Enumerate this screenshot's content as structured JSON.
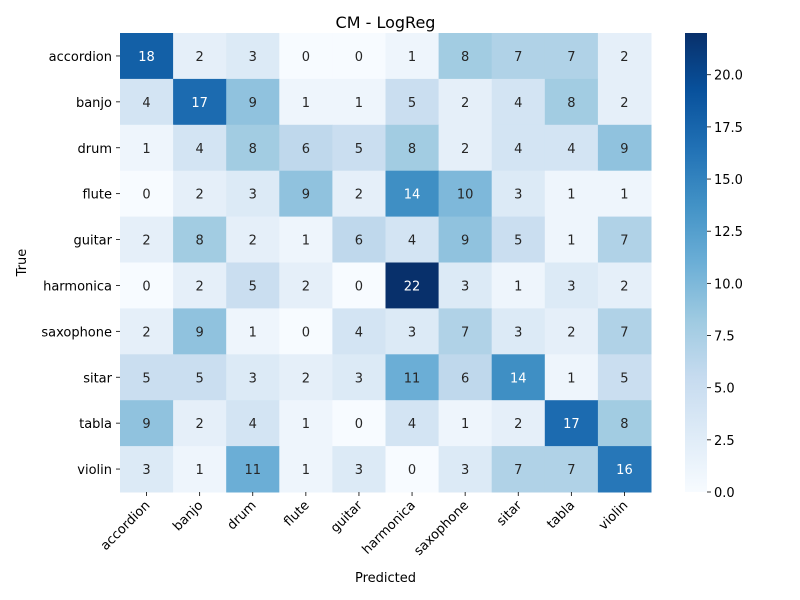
{
  "chart_data": {
    "type": "heatmap",
    "title": "CM - LogReg",
    "xlabel": "Predicted",
    "ylabel": "True",
    "x_categories": [
      "accordion",
      "banjo",
      "drum",
      "flute",
      "guitar",
      "harmonica",
      "saxophone",
      "sitar",
      "tabla",
      "violin"
    ],
    "y_categories": [
      "accordion",
      "banjo",
      "drum",
      "flute",
      "guitar",
      "harmonica",
      "saxophone",
      "sitar",
      "tabla",
      "violin"
    ],
    "values": [
      [
        18,
        2,
        3,
        0,
        0,
        1,
        8,
        7,
        7,
        2
      ],
      [
        4,
        17,
        9,
        1,
        1,
        5,
        2,
        4,
        8,
        2
      ],
      [
        1,
        4,
        8,
        6,
        5,
        8,
        2,
        4,
        4,
        9
      ],
      [
        0,
        2,
        3,
        9,
        2,
        14,
        10,
        3,
        1,
        1
      ],
      [
        2,
        8,
        2,
        1,
        6,
        4,
        9,
        5,
        1,
        7
      ],
      [
        0,
        2,
        5,
        2,
        0,
        22,
        3,
        1,
        3,
        2
      ],
      [
        2,
        9,
        1,
        0,
        4,
        3,
        7,
        3,
        2,
        7
      ],
      [
        5,
        5,
        3,
        2,
        3,
        11,
        6,
        14,
        1,
        5
      ],
      [
        9,
        2,
        4,
        1,
        0,
        4,
        1,
        2,
        17,
        8
      ],
      [
        3,
        1,
        11,
        1,
        3,
        0,
        3,
        7,
        7,
        16
      ]
    ],
    "colorbar": {
      "min": 0,
      "max": 22,
      "ticks": [
        "0.0",
        "2.5",
        "5.0",
        "7.5",
        "10.0",
        "12.5",
        "15.0",
        "17.5",
        "20.0"
      ],
      "colormap": "Blues"
    }
  }
}
